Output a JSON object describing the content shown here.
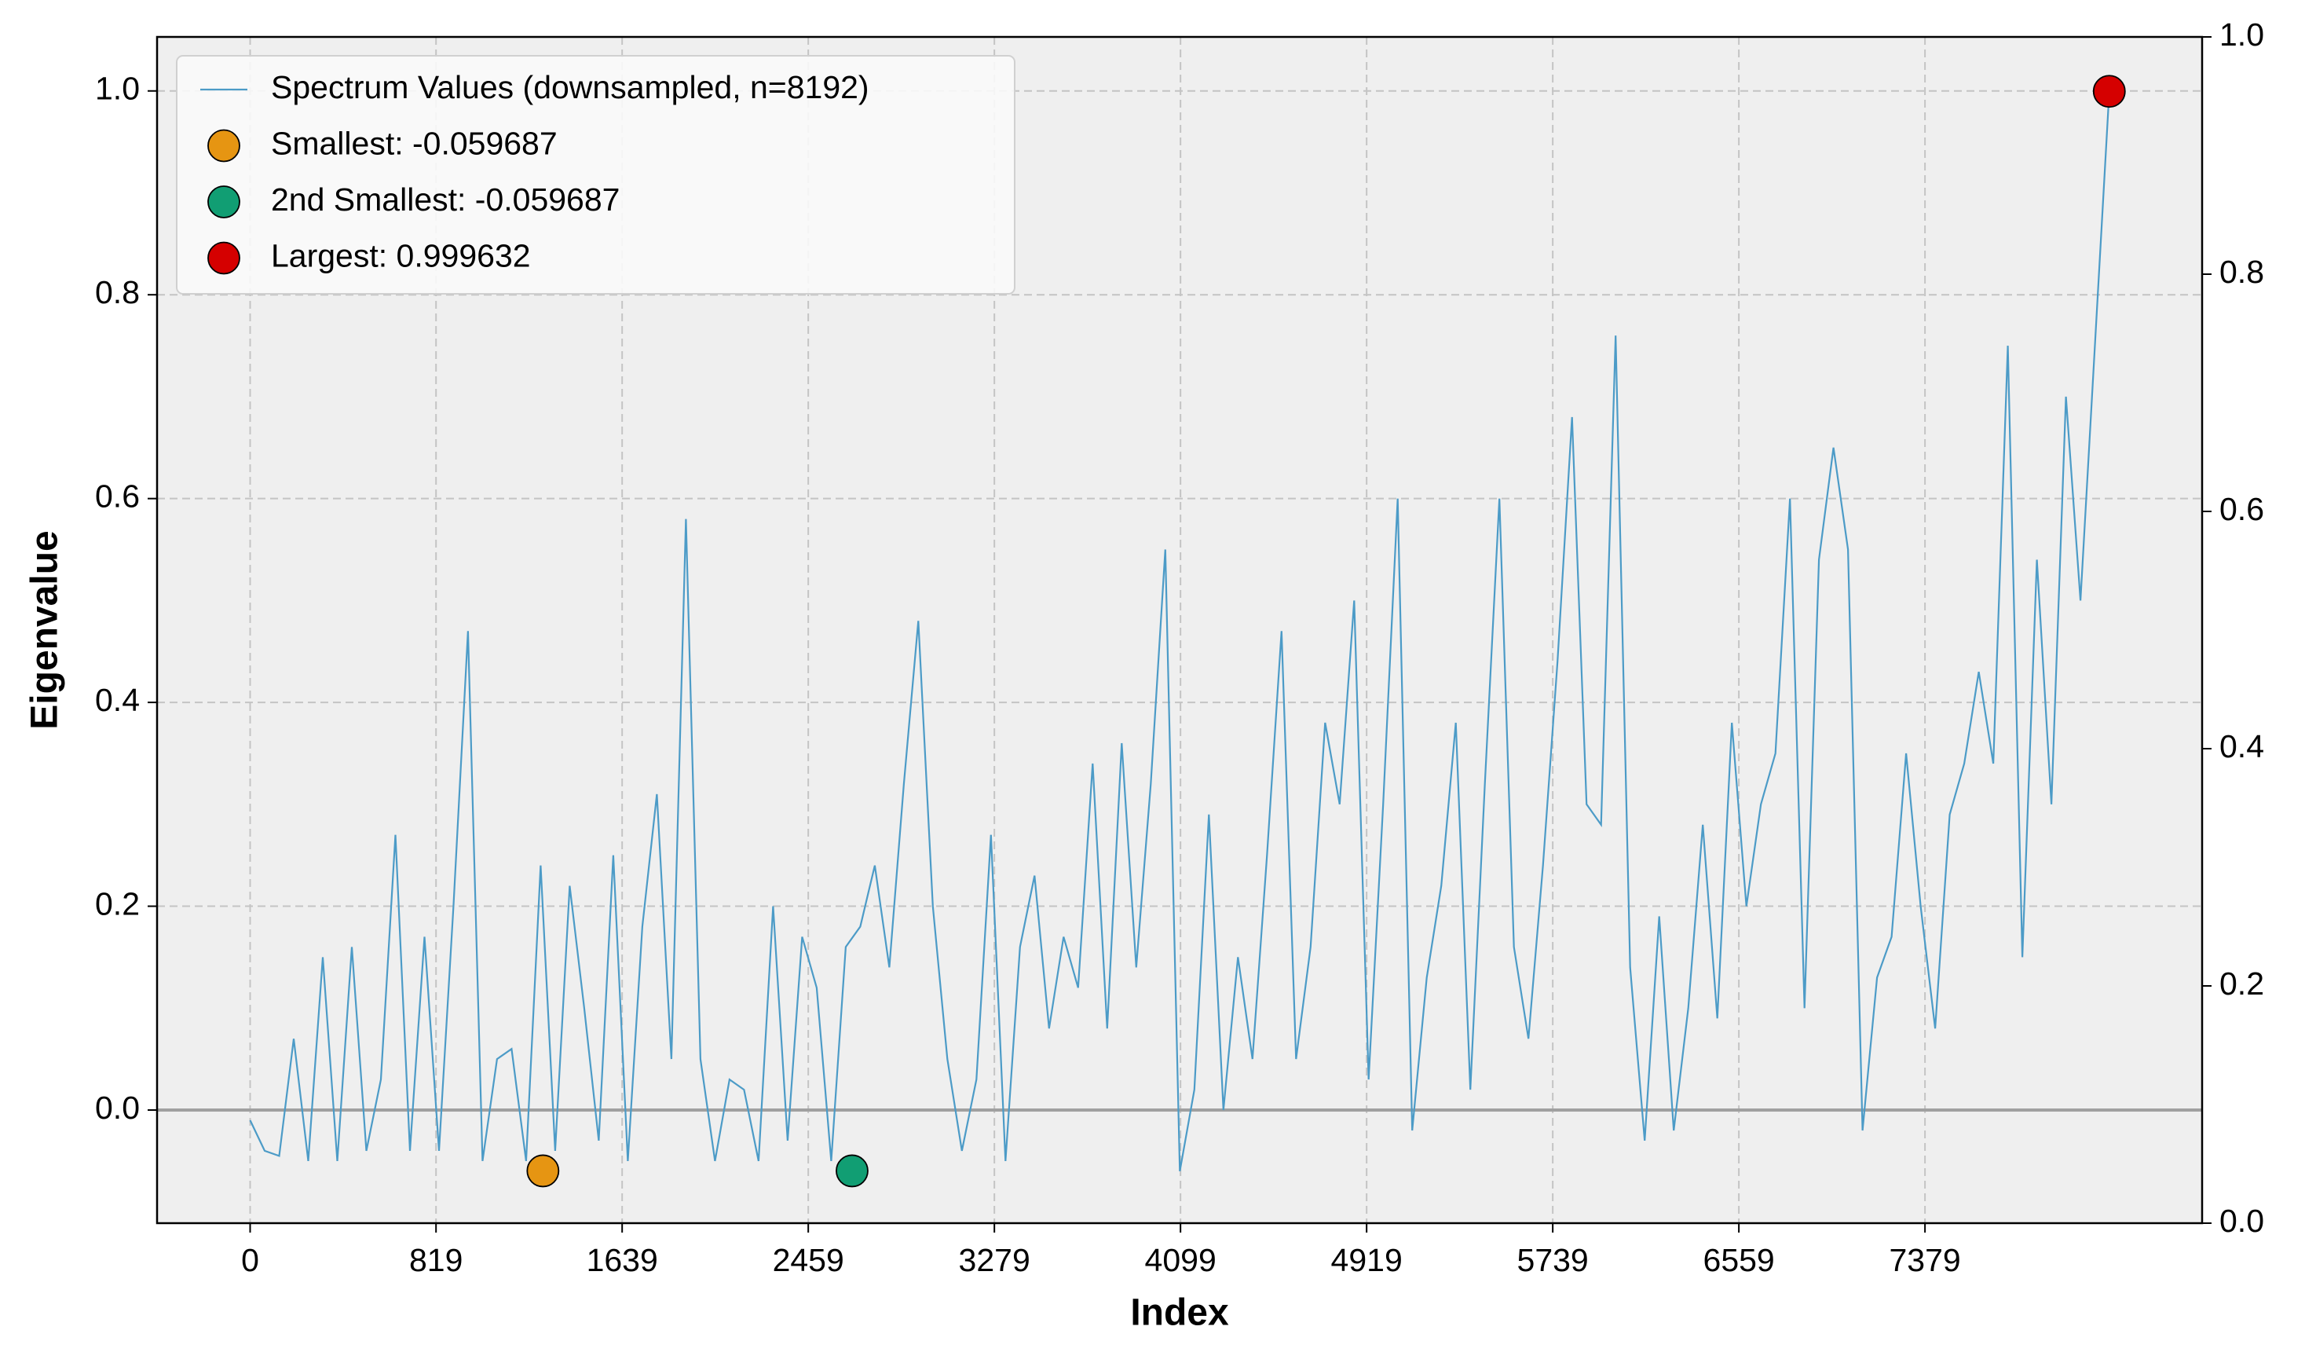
{
  "chart_data": {
    "type": "line",
    "x_label": "Index",
    "y_label": "Eigenvalue",
    "xlim": [
      -410,
      8600
    ],
    "ylim": [
      -0.111,
      1.053
    ],
    "y2lim": [
      0,
      1
    ],
    "xticks": [
      0,
      819,
      1639,
      2459,
      3279,
      4099,
      4919,
      5739,
      6559,
      7379
    ],
    "yticks": [
      {
        "value": 0,
        "label": "0.0"
      },
      {
        "value": 0.2,
        "label": "0.2"
      },
      {
        "value": 0.4,
        "label": "0.4"
      },
      {
        "value": 0.6,
        "label": "0.6"
      },
      {
        "value": 0.8,
        "label": "0.8"
      },
      {
        "value": 1,
        "label": "1.0"
      }
    ],
    "y2ticks": [
      {
        "value": 0,
        "label": "0.0"
      },
      {
        "value": 0.2,
        "label": "0.2"
      },
      {
        "value": 0.4,
        "label": "0.4"
      },
      {
        "value": 0.6,
        "label": "0.6"
      },
      {
        "value": 0.8,
        "label": "0.8"
      },
      {
        "value": 1,
        "label": "1.0"
      }
    ],
    "grid": true,
    "legend": "upper left",
    "hline": {
      "value": 0,
      "color": "#a0a0a0"
    },
    "series": [
      {
        "name": "Spectrum Values (downsampled, n=8192)",
        "type": "line",
        "color": "#4c9bc7",
        "x": [
          0,
          64,
          128,
          192,
          256,
          320,
          384,
          448,
          512,
          576,
          640,
          704,
          768,
          832,
          896,
          960,
          1024,
          1088,
          1152,
          1216,
          1280,
          1344,
          1408,
          1472,
          1536,
          1600,
          1664,
          1728,
          1792,
          1856,
          1920,
          1984,
          2048,
          2112,
          2176,
          2240,
          2304,
          2368,
          2432,
          2496,
          2560,
          2624,
          2688,
          2752,
          2816,
          2880,
          2944,
          3008,
          3072,
          3136,
          3200,
          3264,
          3328,
          3392,
          3456,
          3520,
          3584,
          3648,
          3712,
          3776,
          3840,
          3904,
          3968,
          4032,
          4096,
          4160,
          4224,
          4288,
          4352,
          4416,
          4480,
          4544,
          4608,
          4672,
          4736,
          4800,
          4864,
          4928,
          4992,
          5056,
          5120,
          5184,
          5248,
          5312,
          5376,
          5440,
          5504,
          5568,
          5632,
          5696,
          5760,
          5824,
          5888,
          5952,
          6016,
          6080,
          6144,
          6208,
          6272,
          6336,
          6400,
          6464,
          6528,
          6592,
          6656,
          6720,
          6784,
          6848,
          6912,
          6976,
          7040,
          7104,
          7168,
          7232,
          7296,
          7360,
          7424,
          7488,
          7552,
          7616,
          7680,
          7744,
          7808,
          7872,
          7936,
          8000,
          8064,
          8191
        ],
        "values": [
          -0.01,
          -0.04,
          -0.045,
          0.07,
          -0.05,
          0.15,
          -0.05,
          0.16,
          -0.04,
          0.03,
          0.27,
          -0.04,
          0.17,
          -0.04,
          0.2,
          0.47,
          -0.05,
          0.05,
          0.06,
          -0.05,
          0.24,
          -0.04,
          0.22,
          0.1,
          -0.03,
          0.25,
          -0.05,
          0.18,
          0.31,
          0.05,
          0.58,
          0.05,
          -0.05,
          0.03,
          0.02,
          -0.05,
          0.2,
          -0.03,
          0.17,
          0.12,
          -0.05,
          0.16,
          0.18,
          0.24,
          0.14,
          0.32,
          0.48,
          0.2,
          0.05,
          -0.04,
          0.03,
          0.27,
          -0.05,
          0.16,
          0.23,
          0.08,
          0.17,
          0.12,
          0.34,
          0.08,
          0.36,
          0.14,
          0.32,
          0.55,
          -0.06,
          0.02,
          0.29,
          0.0,
          0.15,
          0.05,
          0.25,
          0.47,
          0.05,
          0.16,
          0.38,
          0.3,
          0.5,
          0.03,
          0.3,
          0.6,
          -0.02,
          0.13,
          0.22,
          0.38,
          0.02,
          0.32,
          0.6,
          0.16,
          0.07,
          0.24,
          0.44,
          0.68,
          0.3,
          0.28,
          0.76,
          0.14,
          -0.03,
          0.19,
          -0.02,
          0.1,
          0.28,
          0.09,
          0.38,
          0.2,
          0.3,
          0.35,
          0.6,
          0.1,
          0.54,
          0.65,
          0.55,
          -0.02,
          0.13,
          0.17,
          0.35,
          0.2,
          0.08,
          0.29,
          0.34,
          0.43,
          0.34,
          0.75,
          0.15,
          0.54,
          0.3,
          0.7,
          0.5,
          0.999632
        ]
      },
      {
        "name": "Smallest: -0.059687",
        "type": "scatter",
        "color": "#e69512",
        "x": [
          1290
        ],
        "values": [
          -0.059687
        ]
      },
      {
        "name": "2nd Smallest: -0.059687",
        "type": "scatter",
        "color": "#119e73",
        "x": [
          2652
        ],
        "values": [
          -0.059687
        ]
      },
      {
        "name": "Largest: 0.999632",
        "type": "scatter",
        "color": "#d50000",
        "x": [
          8191
        ],
        "values": [
          0.999632
        ]
      }
    ]
  }
}
